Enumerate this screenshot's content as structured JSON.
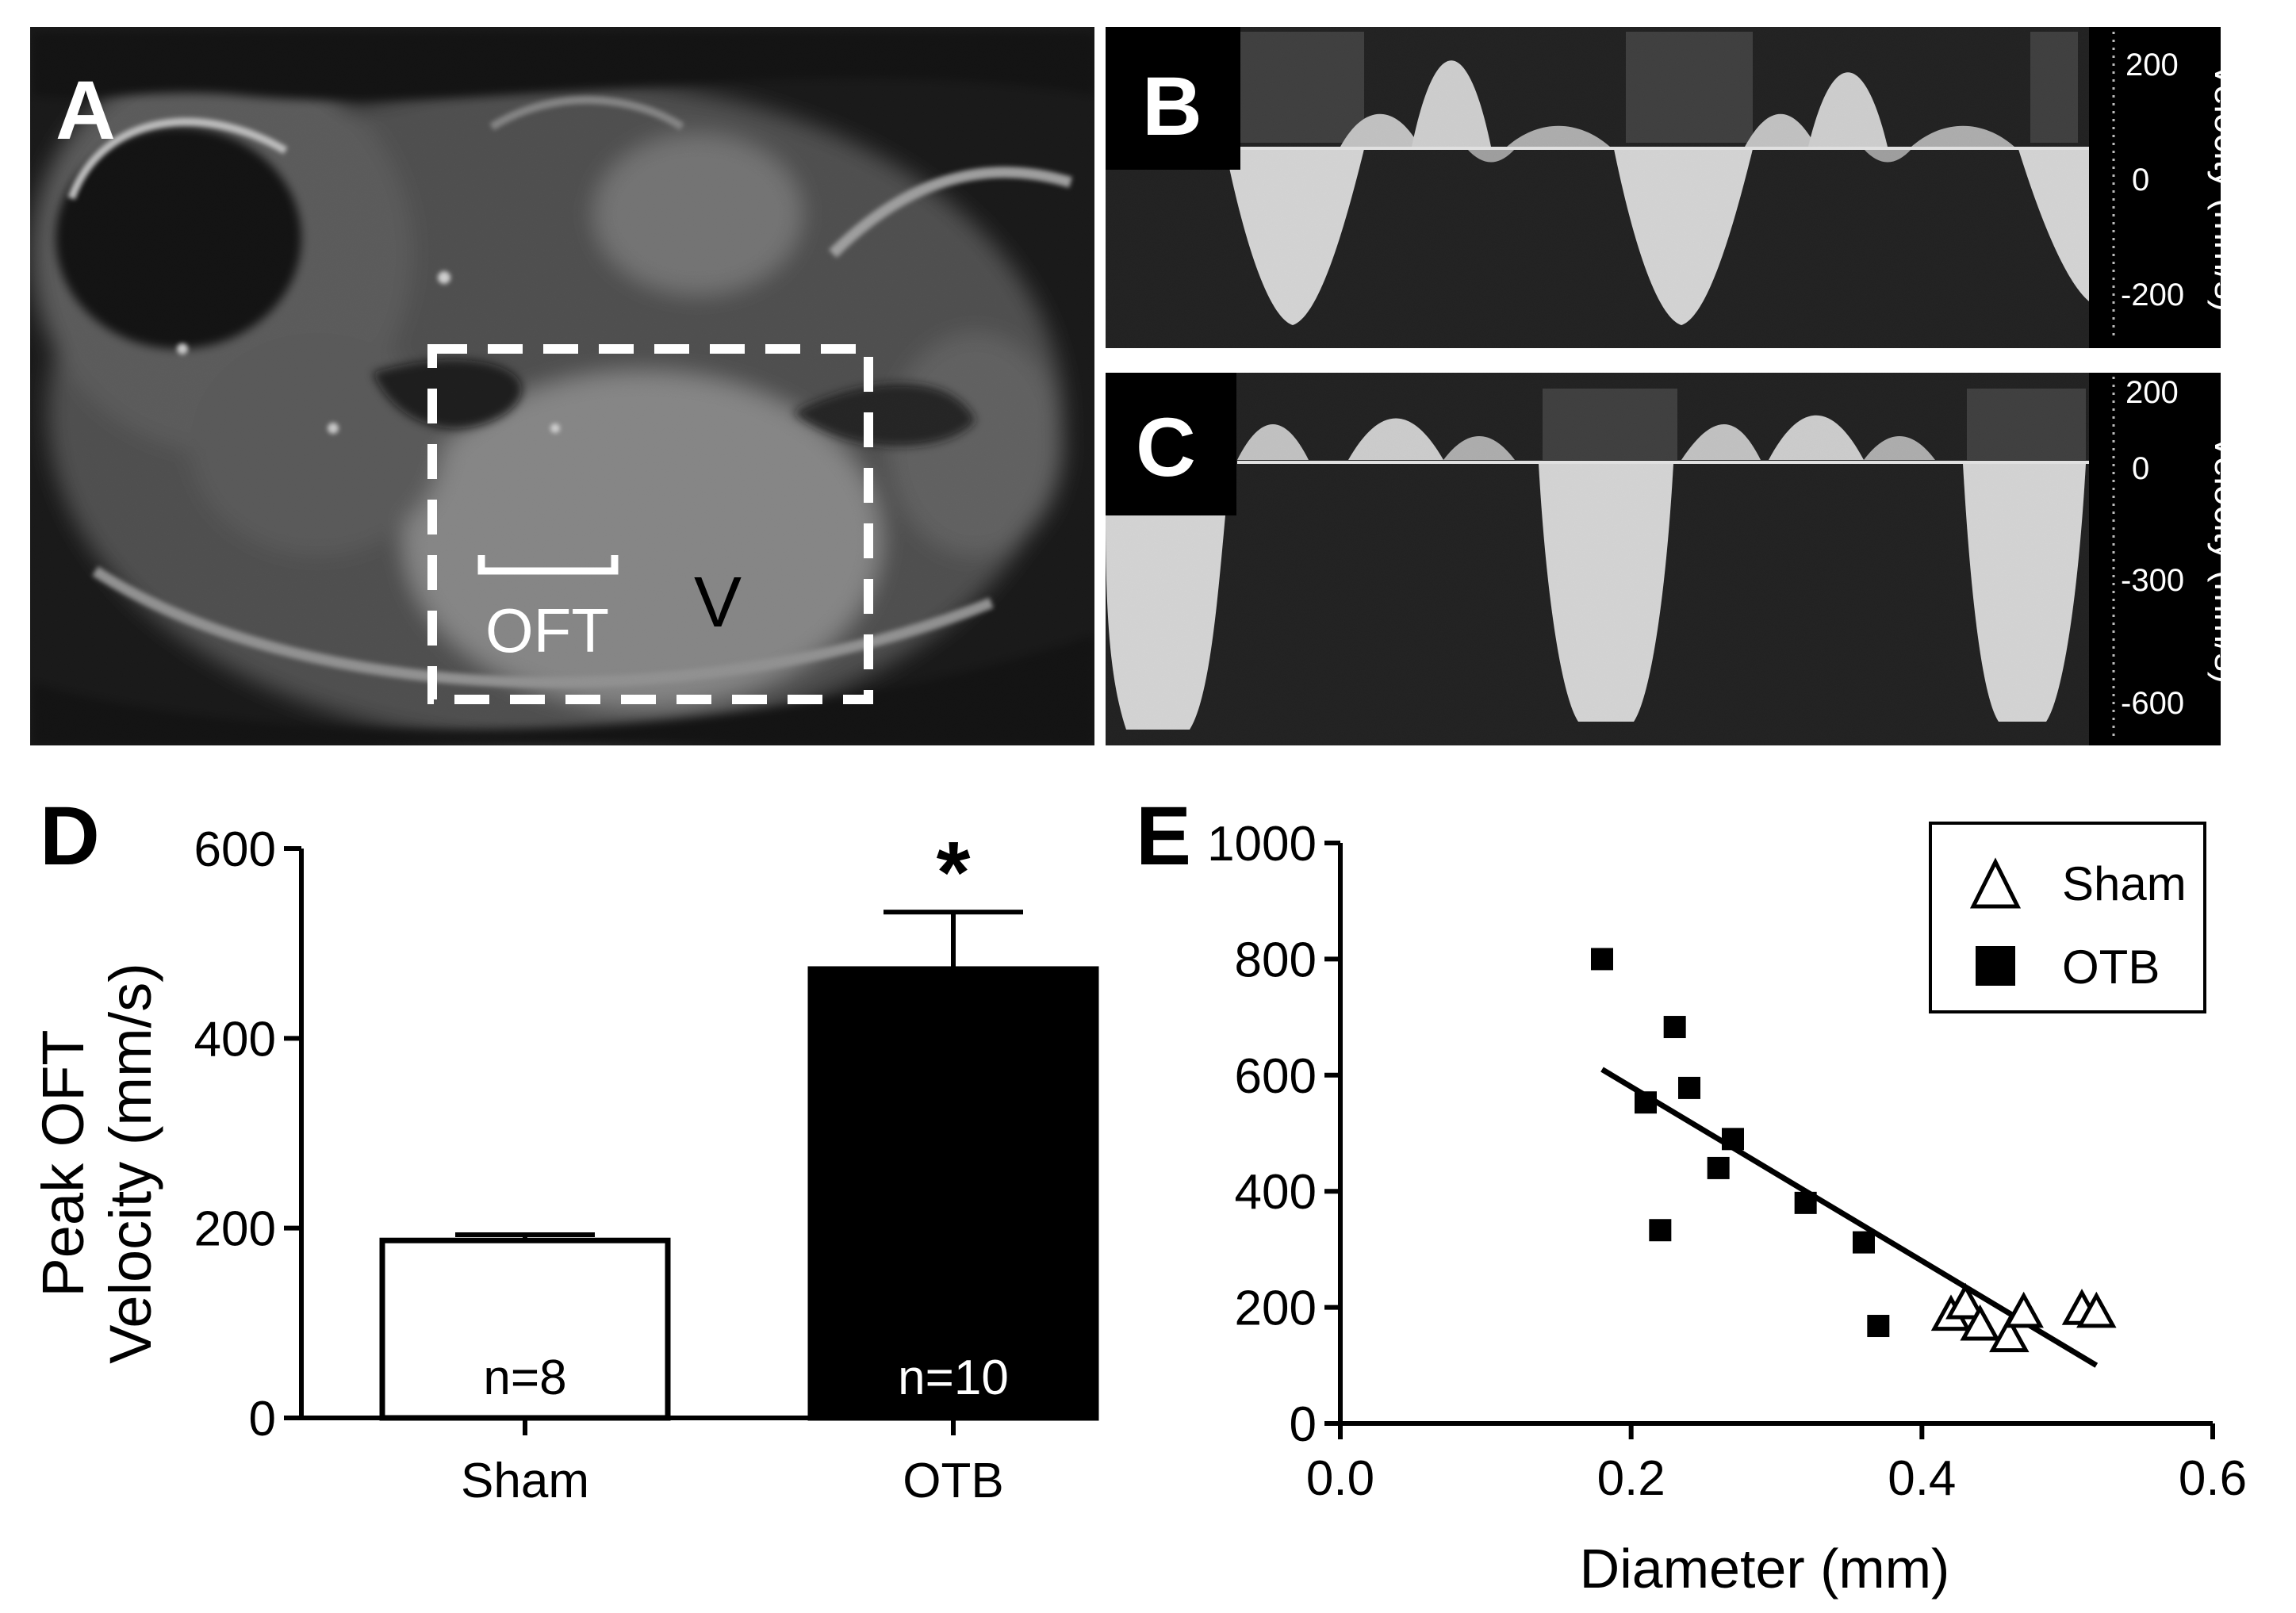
{
  "panels": {
    "a": {
      "letter": "A",
      "labels": {
        "oft": "OFT",
        "ventricle": "V"
      }
    },
    "b": {
      "letter": "B",
      "ylabel": "Velocity (mm/s)",
      "ticks": [
        "200",
        "0",
        "-200"
      ]
    },
    "c": {
      "letter": "C",
      "ylabel": "Velocity (mm/s)",
      "ticks": [
        "200",
        "0",
        "-300",
        "-600"
      ]
    },
    "d": {
      "letter": "D"
    },
    "e": {
      "letter": "E"
    }
  },
  "chart_data": [
    {
      "panel": "D",
      "type": "bar",
      "categories": [
        "Sham",
        "OTB"
      ],
      "values": [
        187,
        473
      ],
      "errors": [
        6,
        60
      ],
      "n_labels": [
        "n=8",
        "n=10"
      ],
      "bar_colors": [
        "#ffffff",
        "#000000"
      ],
      "significance": [
        "",
        "*"
      ],
      "ylabel_lines": [
        "Peak OFT",
        "Velocity (mm/s)"
      ],
      "ylim": [
        0,
        600
      ],
      "yticks": [
        0,
        200,
        400,
        600
      ]
    },
    {
      "panel": "E",
      "type": "scatter",
      "xlabel": "Diameter (mm)",
      "xlim": [
        0.0,
        0.6
      ],
      "ylim": [
        0,
        1000
      ],
      "xticks": [
        "0.0",
        "0.2",
        "0.4",
        "0.6"
      ],
      "yticks": [
        "0",
        "200",
        "400",
        "600",
        "800",
        "1000"
      ],
      "legend_position": "top-right",
      "series": [
        {
          "name": "Sham",
          "marker": "open-triangle",
          "points": [
            [
              0.42,
              185
            ],
            [
              0.43,
              205
            ],
            [
              0.44,
              168
            ],
            [
              0.46,
              148
            ],
            [
              0.47,
              190
            ],
            [
              0.51,
              195
            ],
            [
              0.52,
              190
            ]
          ]
        },
        {
          "name": "OTB",
          "marker": "filled-square",
          "points": [
            [
              0.18,
              800
            ],
            [
              0.21,
              553
            ],
            [
              0.22,
              333
            ],
            [
              0.23,
              683
            ],
            [
              0.24,
              578
            ],
            [
              0.26,
              440
            ],
            [
              0.27,
              490
            ],
            [
              0.32,
              380
            ],
            [
              0.36,
              312
            ],
            [
              0.37,
              168
            ]
          ]
        }
      ],
      "fit_line": [
        [
          0.18,
          610
        ],
        [
          0.52,
          100
        ]
      ]
    }
  ]
}
